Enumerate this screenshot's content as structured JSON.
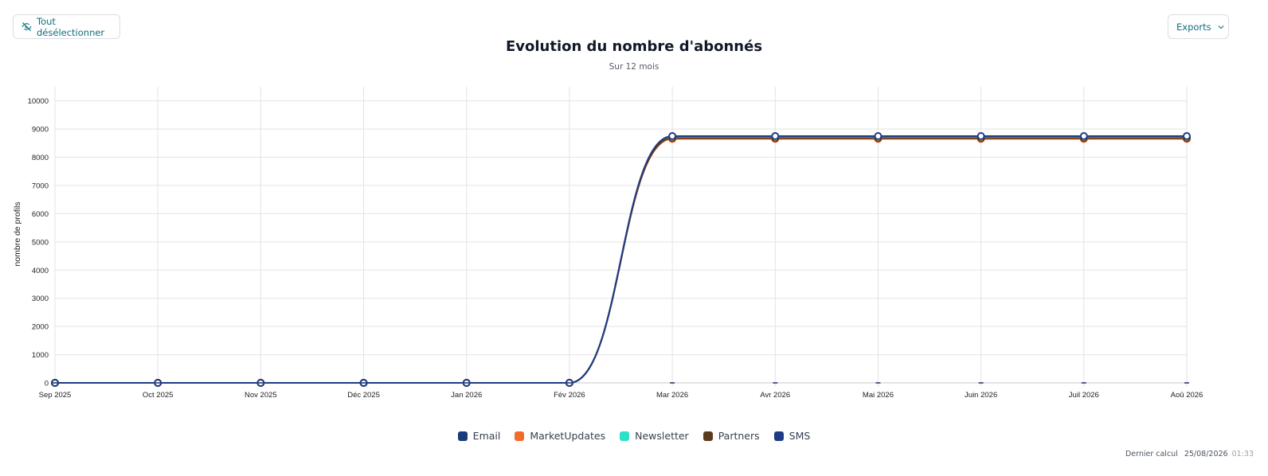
{
  "toolbar": {
    "deselect_label": "Tout désélectionner",
    "exports_label": "Exports"
  },
  "footer": {
    "label": "Dernier calcul",
    "date": "25/08/2026",
    "time": "01:33"
  },
  "chart_data": {
    "type": "line",
    "title": "Evolution du nombre d'abonnés",
    "subtitle": "Sur 12 mois",
    "xlabel": "",
    "ylabel": "nombre de profils",
    "ylim": [
      0,
      10500
    ],
    "yticks": [
      0,
      1000,
      2000,
      3000,
      4000,
      5000,
      6000,
      7000,
      8000,
      9000,
      10000
    ],
    "grid": true,
    "legend_position": "bottom",
    "categories": [
      "Sep 2025",
      "Oct 2025",
      "Nov 2025",
      "Déc 2025",
      "Jan 2026",
      "Fév 2026",
      "Mar 2026",
      "Avr 2026",
      "Mai 2026",
      "Juin 2026",
      "Juil 2026",
      "Aoû 2026"
    ],
    "series": [
      {
        "name": "Email",
        "color": "#1a3a7a",
        "values": [
          0,
          0,
          0,
          0,
          0,
          0,
          8730,
          8730,
          8730,
          8730,
          8730,
          8730
        ]
      },
      {
        "name": "MarketUpdates",
        "color": "#f26b2a",
        "values": [
          0,
          0,
          0,
          0,
          0,
          0,
          8650,
          8650,
          8650,
          8650,
          8650,
          8650
        ]
      },
      {
        "name": "Newsletter",
        "color": "#2ee0c6",
        "values": [
          0,
          0,
          0,
          0,
          0,
          0,
          8700,
          8700,
          8700,
          8700,
          8700,
          8700
        ]
      },
      {
        "name": "Partners",
        "color": "#5a3b1e",
        "values": [
          0,
          0,
          0,
          0,
          0,
          0,
          8680,
          8680,
          8680,
          8680,
          8680,
          8680
        ]
      },
      {
        "name": "SMS",
        "color": "#1f3b85",
        "values": [
          0,
          0,
          0,
          0,
          0,
          0,
          8750,
          8750,
          8750,
          8750,
          8750,
          8750
        ]
      }
    ]
  }
}
